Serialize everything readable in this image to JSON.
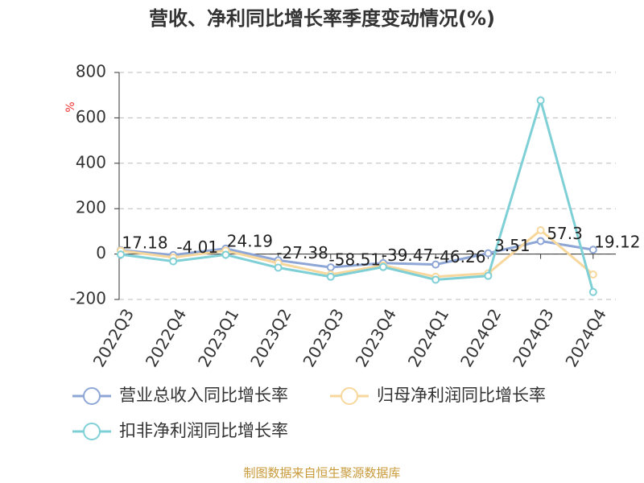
{
  "chart_data": {
    "type": "line",
    "title": "营收、净利同比增长率季度变动情况(%)",
    "y_label": "%",
    "footer": "制图数据来自恒生聚源数据库",
    "categories": [
      "2022Q3",
      "2022Q4",
      "2023Q1",
      "2023Q2",
      "2023Q3",
      "2023Q4",
      "2024Q1",
      "2024Q2",
      "2024Q3",
      "2024Q4"
    ],
    "series": [
      {
        "name": "营业总收入同比增长率",
        "color": "#8ea6d6",
        "show_labels": true,
        "values": [
          17.18,
          -4.01,
          24.19,
          -27.38,
          -58.51,
          -39.47,
          -46.26,
          3.51,
          57.3,
          19.12
        ]
      },
      {
        "name": "归母净利润同比增长率",
        "color": "#f7d79c",
        "show_labels": false,
        "values": [
          15,
          -15,
          15,
          -40,
          -90,
          -50,
          -100,
          -85,
          105,
          -90
        ]
      },
      {
        "name": "扣非净利润同比增长率",
        "color": "#7fd0d6",
        "show_labels": false,
        "values": [
          -2,
          -32,
          -3,
          -60,
          -100,
          -57,
          -113,
          -96,
          677,
          -167
        ]
      }
    ],
    "ylim": [
      -200,
      800
    ],
    "yticks": [
      -200,
      0,
      200,
      400,
      600,
      800
    ],
    "grid": true
  }
}
